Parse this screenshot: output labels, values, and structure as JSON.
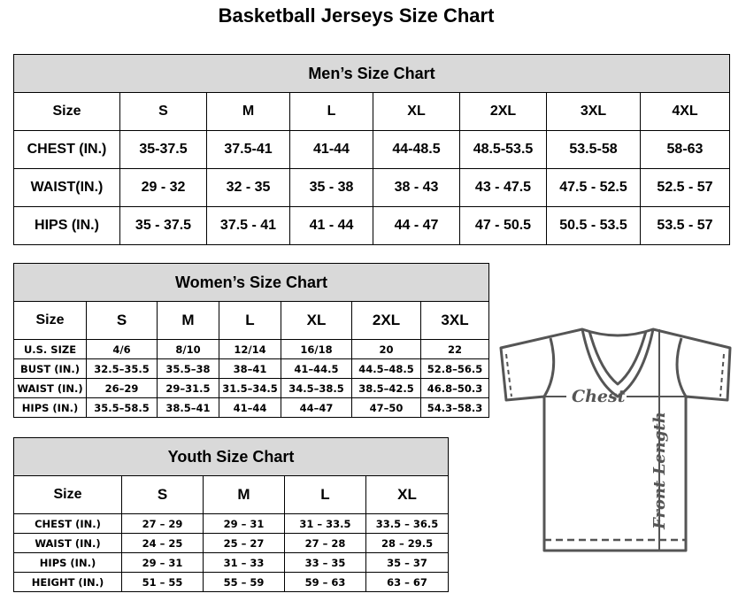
{
  "title": "Basketball Jerseys Size Chart",
  "men": {
    "title": "Men’s Size Chart",
    "header": [
      "Size",
      "S",
      "M",
      "L",
      "XL",
      "2XL",
      "3XL",
      "4XL"
    ],
    "rows": [
      [
        "CHEST (IN.)",
        "35-37.5",
        "37.5-41",
        "41-44",
        "44-48.5",
        "48.5-53.5",
        "53.5-58",
        "58-63"
      ],
      [
        "WAIST(IN.)",
        "29 - 32",
        "32 - 35",
        "35 - 38",
        "38 - 43",
        "43 - 47.5",
        "47.5 - 52.5",
        "52.5 - 57"
      ],
      [
        "HIPS (IN.)",
        "35 - 37.5",
        "37.5 - 41",
        "41 - 44",
        "44 - 47",
        "47 - 50.5",
        "50.5 - 53.5",
        "53.5 - 57"
      ]
    ]
  },
  "women": {
    "title": "Women’s Size Chart",
    "header": [
      "Size",
      "S",
      "M",
      "L",
      "XL",
      "2XL",
      "3XL"
    ],
    "rows": [
      [
        "U.S.  SIZE",
        "4/6",
        "8/10",
        "12/14",
        "16/18",
        "20",
        "22"
      ],
      [
        "BUST  (IN.)",
        "32.5–35.5",
        "35.5–38",
        "38–41",
        "41–44.5",
        "44.5–48.5",
        "52.8–56.5"
      ],
      [
        "WAIST  (IN.)",
        "26–29",
        "29–31.5",
        "31.5–34.5",
        "34.5–38.5",
        "38.5–42.5",
        "46.8–50.3"
      ],
      [
        "HIPS  (IN.)",
        "35.5–58.5",
        "38.5–41",
        "41–44",
        "44–47",
        "47–50",
        "54.3–58.3"
      ]
    ]
  },
  "youth": {
    "title": "Youth Size Chart",
    "header": [
      "Size",
      "S",
      "M",
      "L",
      "XL"
    ],
    "rows": [
      [
        "CHEST  (IN.)",
        "27  –  29",
        "29  –  31",
        "31  –  33.5",
        "33.5  –  36.5"
      ],
      [
        "WAIST  (IN.)",
        "24  –  25",
        "25  –  27",
        "27  –  28",
        "28  –  29.5"
      ],
      [
        "HIPS  (IN.)",
        "29  –  31",
        "31  –  33",
        "33  –  35",
        "35  –  37"
      ],
      [
        "HEIGHT  (IN.)",
        "51  –  55",
        "55  –  59",
        "59  –  63",
        "63  –  67"
      ]
    ]
  },
  "diagram": {
    "chest_label": "Chest",
    "length_label": "Front Length"
  },
  "colors": {
    "title_bg": "#d9d9d9",
    "shirt_line": "#555555"
  }
}
